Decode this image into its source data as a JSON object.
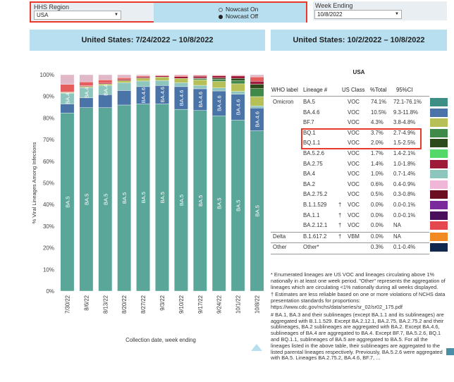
{
  "filters": {
    "region_label": "HHS Region",
    "region_value": "USA",
    "nowcast_on": "Nowcast On",
    "nowcast_off": "Nowcast Off",
    "week_label": "Week Ending",
    "week_value": "10/8/2022"
  },
  "banners": {
    "left": "United States: 7/24/2022 – 10/8/2022",
    "right": "United States: 10/2/2022 – 10/8/2022"
  },
  "chart_data": {
    "type": "bar",
    "stacked": true,
    "xlabel": "Collection date, week ending",
    "ylabel": "% Viral Lineages Among Infections",
    "ylim": [
      0,
      100
    ],
    "yticks": [
      "0%",
      "10%",
      "20%",
      "30%",
      "40%",
      "50%",
      "60%",
      "70%",
      "80%",
      "90%",
      "100%"
    ],
    "categories": [
      "7/30/22",
      "8/6/22",
      "8/13/22",
      "8/20/22",
      "8/27/22",
      "9/3/22",
      "9/10/22",
      "9/17/22",
      "9/24/22",
      "10/1/22",
      "10/8/22"
    ],
    "colors": {
      "BA.5": "#5aa79a",
      "BA.4.6": "#4a73a8",
      "BA.4": "#8ec6bd",
      "BF.7": "#b7bf57",
      "BQ.1": "#3f8a48",
      "BQ.1.1": "#2c4a1a",
      "BA.2.75": "#9e1a3a",
      "Other": "#e55d5d",
      "Minor": "#e0b8c8"
    },
    "series": [
      {
        "name": "BA.5",
        "values": [
          82.3,
          84.8,
          84.8,
          86.0,
          86.5,
          86.5,
          84.0,
          83.5,
          81.0,
          79.0,
          74.1
        ]
      },
      {
        "name": "BA.4.6",
        "values": [
          4.2,
          4.5,
          6.0,
          6.7,
          8.0,
          8.5,
          10.5,
          10.0,
          11.5,
          12.0,
          10.5
        ]
      },
      {
        "name": "BA.4",
        "values": [
          5.0,
          4.8,
          4.2,
          3.6,
          2.6,
          2.3,
          1.8,
          1.6,
          1.4,
          1.3,
          1.0
        ]
      },
      {
        "name": "BF.7",
        "values": [
          0.3,
          0.5,
          0.7,
          1.0,
          1.3,
          1.6,
          2.0,
          2.5,
          3.0,
          3.5,
          4.3
        ]
      },
      {
        "name": "BQ.1",
        "values": [
          0,
          0,
          0,
          0,
          0,
          0,
          0,
          0.5,
          1.0,
          1.5,
          3.7
        ]
      },
      {
        "name": "BQ.1.1",
        "values": [
          0,
          0,
          0,
          0,
          0,
          0,
          0,
          0.3,
          0.6,
          1.0,
          2.0
        ]
      },
      {
        "name": "BA.2.75",
        "values": [
          0.2,
          0.3,
          0.4,
          0.5,
          0.6,
          0.6,
          0.8,
          0.9,
          1.0,
          1.1,
          1.4
        ]
      },
      {
        "name": "Other",
        "values": [
          3.5,
          1.8,
          1.5,
          0.8,
          0.5,
          0.3,
          0.5,
          0.4,
          0.3,
          0.3,
          2.0
        ]
      },
      {
        "name": "Minor",
        "values": [
          4.5,
          3.3,
          2.4,
          1.4,
          0.5,
          0.2,
          0.4,
          0.3,
          0.2,
          0.3,
          1.0
        ]
      }
    ],
    "bar_labels": [
      [
        "BA.5",
        "BA.4"
      ],
      [
        "BA.5",
        "BA.4"
      ],
      [
        "BA.5",
        "BA.4"
      ],
      [
        "BA.5"
      ],
      [
        "BA.5",
        "BA.4.6"
      ],
      [
        "BA.5",
        "BA.4.6"
      ],
      [
        "BA.5",
        "BA.4.6"
      ],
      [
        "BA.5",
        "BA.4.6"
      ],
      [
        "BA.5",
        "BA.4.6"
      ],
      [
        "BA.5",
        "BA.4.6"
      ],
      [
        "BA.5",
        "BA.4.6"
      ]
    ]
  },
  "table": {
    "title": "USA",
    "headers": [
      "WHO label",
      "Lineage #",
      "US Class",
      "%Total",
      "95%CI"
    ],
    "rows": [
      {
        "who": "Omicron",
        "lineage": "BA.5",
        "dagger": "",
        "cls": "VOC",
        "pct": "74.1%",
        "ci": "72.1-76.1%",
        "color": "#3d8f86"
      },
      {
        "who": "",
        "lineage": "BA.4.6",
        "dagger": "",
        "cls": "VOC",
        "pct": "10.5%",
        "ci": "9.3-11.8%",
        "color": "#4a73a8"
      },
      {
        "who": "",
        "lineage": "BF.7",
        "dagger": "",
        "cls": "VOC",
        "pct": "4.3%",
        "ci": "3.8-4.8%",
        "color": "#b7bf57"
      },
      {
        "who": "",
        "lineage": "BQ.1",
        "dagger": "",
        "cls": "VOC",
        "pct": "3.7%",
        "ci": "2.7-4.9%",
        "color": "#3f8a48"
      },
      {
        "who": "",
        "lineage": "BQ.1.1",
        "dagger": "",
        "cls": "VOC",
        "pct": "2.0%",
        "ci": "1.5-2.5%",
        "color": "#2c4a1a"
      },
      {
        "who": "",
        "lineage": "BA.5.2.6",
        "dagger": "",
        "cls": "VOC",
        "pct": "1.7%",
        "ci": "1.4-2.1%",
        "color": "#55d86a"
      },
      {
        "who": "",
        "lineage": "BA.2.75",
        "dagger": "",
        "cls": "VOC",
        "pct": "1.4%",
        "ci": "1.0-1.8%",
        "color": "#9e1a3a"
      },
      {
        "who": "",
        "lineage": "BA.4",
        "dagger": "",
        "cls": "VOC",
        "pct": "1.0%",
        "ci": "0.7-1.4%",
        "color": "#8ec6bd"
      },
      {
        "who": "",
        "lineage": "BA.2",
        "dagger": "",
        "cls": "VOC",
        "pct": "0.6%",
        "ci": "0.4-0.9%",
        "color": "#f0b6d8"
      },
      {
        "who": "",
        "lineage": "BA.2.75.2",
        "dagger": "",
        "cls": "VOC",
        "pct": "0.5%",
        "ci": "0.3-0.8%",
        "color": "#6a0f1f"
      },
      {
        "who": "",
        "lineage": "B.1.1.529",
        "dagger": "†",
        "cls": "VOC",
        "pct": "0.0%",
        "ci": "0.0-0.1%",
        "color": "#7a2a9a"
      },
      {
        "who": "",
        "lineage": "BA.1.1",
        "dagger": "†",
        "cls": "VOC",
        "pct": "0.0%",
        "ci": "0.0-0.1%",
        "color": "#4a0f5a"
      },
      {
        "who": "",
        "lineage": "BA.2.12.1",
        "dagger": "†",
        "cls": "VOC",
        "pct": "0.0%",
        "ci": "NA",
        "color": "#e5474f"
      },
      {
        "who": "Delta",
        "lineage": "B.1.617.2",
        "dagger": "†",
        "cls": "VBM",
        "pct": "0.0%",
        "ci": "NA",
        "color": "#f08a24"
      },
      {
        "who": "Other",
        "lineage": "Other*",
        "dagger": "",
        "cls": "",
        "pct": "0.3%",
        "ci": "0.1-0.4%",
        "color": "#13284f"
      }
    ]
  },
  "footnotes": {
    "f1": "*     Enumerated lineages are US VOC and lineages circulating above 1% nationally in at least one week period. \"Other\" represents the aggregation of lineages which are circulating <1% nationally during all weeks displayed.",
    "f2": "†     Estimates are less reliable based on one or more violations of NCHS data presentation standards for proportions: https://www.cdc.gov/nchs/data/series/sr_02/sr02_175.pdf",
    "f3": "#     BA.1, BA.3 and their sublineages (except BA.1.1 and its sublineages) are aggregated with B.1.1.529. Except BA.2.12.1, BA.2.75, BA.2.75.2 and their sublineages, BA.2 sublineages are aggregated with BA.2. Except BA.4.6, sublineages of BA.4 are aggregated to BA.4. Except BF.7, BA.5.2.6, BQ.1 and BQ.1.1, sublineages of BA.5 are aggregated to BA.5. For all the lineages listed in the above table, their sublineages are aggregated to the listed parental lineages respectively. Previously, BA.5.2.6 were aggregated with BA.5. Lineages BA.2.75.2, BA.4.6, BF.7, ..."
  }
}
